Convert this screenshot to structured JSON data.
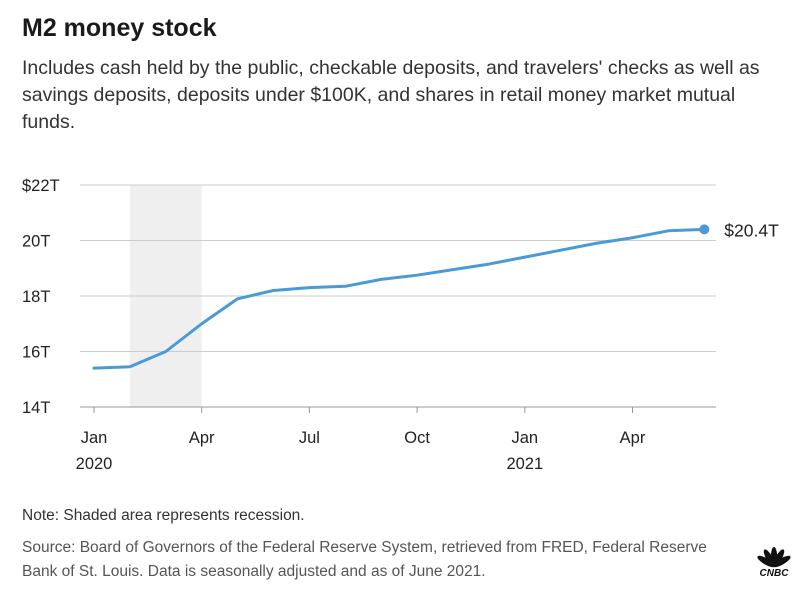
{
  "header": {
    "title": "M2 money stock",
    "subtitle": "Includes cash held by the public, checkable deposits, and travelers' checks as well as savings deposits, deposits under $100K, and shares in retail money market mutual funds."
  },
  "chart_data": {
    "type": "line",
    "title": "M2 money stock",
    "xlabel": "",
    "ylabel": "",
    "ylim": [
      14,
      22
    ],
    "y_ticks": [
      {
        "value": 22,
        "label": "$22T"
      },
      {
        "value": 20,
        "label": "20T"
      },
      {
        "value": 18,
        "label": "18T"
      },
      {
        "value": 16,
        "label": "16T"
      },
      {
        "value": 14,
        "label": "14T"
      }
    ],
    "x_ticks": [
      {
        "month_index": 0,
        "label": "Jan",
        "year": "2020"
      },
      {
        "month_index": 3,
        "label": "Apr",
        "year": ""
      },
      {
        "month_index": 6,
        "label": "Jul",
        "year": ""
      },
      {
        "month_index": 9,
        "label": "Oct",
        "year": ""
      },
      {
        "month_index": 12,
        "label": "Jan",
        "year": "2021"
      },
      {
        "month_index": 15,
        "label": "Apr",
        "year": ""
      }
    ],
    "recession": {
      "start": 1,
      "end": 3
    },
    "series": [
      {
        "name": "M2 money stock",
        "color": "#4a9ad8",
        "x": [
          "2020-01",
          "2020-02",
          "2020-03",
          "2020-04",
          "2020-05",
          "2020-06",
          "2020-07",
          "2020-08",
          "2020-09",
          "2020-10",
          "2020-11",
          "2020-12",
          "2021-01",
          "2021-02",
          "2021-03",
          "2021-04",
          "2021-05",
          "2021-06"
        ],
        "month_index": [
          0,
          1,
          2,
          3,
          4,
          5,
          6,
          7,
          8,
          9,
          10,
          11,
          12,
          13,
          14,
          15,
          16,
          17
        ],
        "values": [
          15.4,
          15.45,
          16.0,
          17.0,
          17.9,
          18.2,
          18.3,
          18.35,
          18.6,
          18.75,
          18.95,
          19.15,
          19.4,
          19.65,
          19.9,
          20.1,
          20.35,
          20.4
        ]
      }
    ],
    "end_label": "$20.4T"
  },
  "footer": {
    "note": "Note: Shaded area represents recession.",
    "source": "Source: Board of Governors of the Federal Reserve System, retrieved from FRED, Federal Reserve Bank of St. Louis. Data is seasonally adjusted and as of June 2021.",
    "logo_text": "CNBC"
  },
  "colors": {
    "line": "#4a9ad8",
    "recession": "#efefef",
    "grid": "#cccccc",
    "axis": "#999999"
  }
}
